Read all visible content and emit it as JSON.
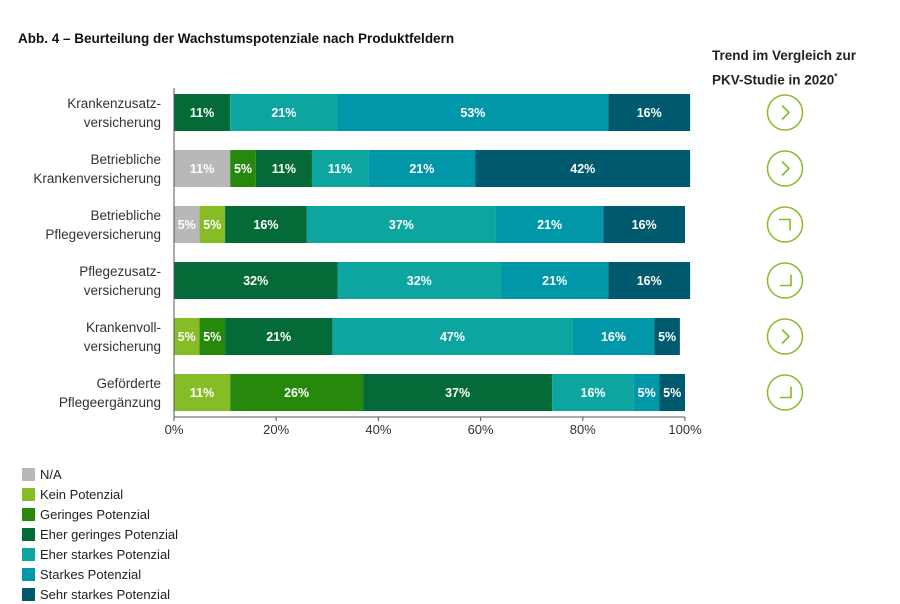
{
  "title": "Abb. 4 – Beurteilung der Wachstumspotenziale nach Produktfeldern",
  "trend_header": {
    "line1": "Trend im Vergleich zur",
    "line2": "PKV-Studie in 2020",
    "footnote_mark": "*"
  },
  "colors": {
    "N/A": "#b8b8b8",
    "Kein Potenzial": "#86bc25",
    "Geringes Potenzial": "#26890d",
    "Eher geringes Potenzial": "#046a38",
    "Eher starkes Potenzial": "#0da5a0",
    "Starkes Potenzial": "#0097a9",
    "Sehr starkes Potenzial": "#005a6e",
    "trend_icon": "#86bc25"
  },
  "chart_data": {
    "type": "bar",
    "orientation": "horizontal",
    "stacked": true,
    "categories": [
      [
        "Krankenzusatz-",
        "versicherung"
      ],
      [
        "Betriebliche",
        "Krankenversicherung"
      ],
      [
        "Betriebliche",
        "Pflegeversicherung"
      ],
      [
        "Pflegezusatz-",
        "versicherung"
      ],
      [
        "Krankenvoll-",
        "versicherung"
      ],
      [
        "Geförderte",
        "Pflegeergänzung"
      ]
    ],
    "series": [
      {
        "name": "N/A",
        "values": [
          0,
          11,
          5,
          0,
          0,
          0
        ]
      },
      {
        "name": "Kein Potenzial",
        "values": [
          0,
          0,
          5,
          0,
          5,
          11
        ]
      },
      {
        "name": "Geringes Potenzial",
        "values": [
          0,
          5,
          0,
          0,
          5,
          26
        ]
      },
      {
        "name": "Eher geringes Potenzial",
        "values": [
          11,
          11,
          16,
          32,
          21,
          37
        ]
      },
      {
        "name": "Eher starkes Potenzial",
        "values": [
          21,
          11,
          37,
          32,
          47,
          16
        ]
      },
      {
        "name": "Starkes Potenzial",
        "values": [
          53,
          21,
          21,
          21,
          16,
          5
        ]
      },
      {
        "name": "Sehr starkes Potenzial",
        "values": [
          16,
          42,
          16,
          16,
          5,
          5
        ]
      }
    ],
    "value_suffix": "%",
    "x_ticks": [
      "0%",
      "20%",
      "40%",
      "60%",
      "80%",
      "100%"
    ],
    "xlim": [
      0,
      100
    ],
    "legend_position": "bottom-left",
    "trend": [
      "right",
      "right",
      "up-right",
      "down-right",
      "right",
      "down-right"
    ]
  }
}
